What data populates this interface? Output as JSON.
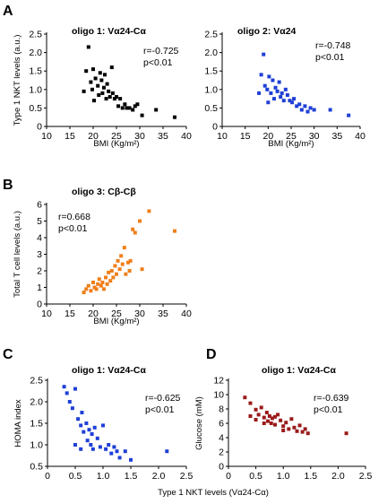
{
  "panels": {
    "A": {
      "letter": "A"
    },
    "B": {
      "letter": "B"
    },
    "C": {
      "letter": "C"
    },
    "D": {
      "letter": "D"
    }
  },
  "chart_data": [
    {
      "id": "A1",
      "type": "scatter",
      "color": "#000000",
      "title": "oligo 1: Vα24-Cα",
      "xlabel": "BMI (Kg/m²)",
      "ylabel": "Type 1 NKT levels (a.u.)",
      "stats": [
        "r=-0.725",
        "p<0.01"
      ],
      "xlim": [
        10,
        40
      ],
      "ylim": [
        0,
        2.5
      ],
      "xticks": [
        "10",
        "15",
        "20",
        "25",
        "30",
        "35",
        "40"
      ],
      "yticks": [
        "0",
        "0.5",
        "1.0",
        "1.5",
        "2.0",
        "2.5"
      ],
      "points": [
        [
          19,
          2.15
        ],
        [
          18.5,
          1.5
        ],
        [
          19.5,
          1.2
        ],
        [
          19.8,
          1.0
        ],
        [
          20,
          1.55
        ],
        [
          20.5,
          1.3
        ],
        [
          21,
          1.1
        ],
        [
          21.2,
          0.85
        ],
        [
          21.5,
          1.45
        ],
        [
          21.8,
          1.25
        ],
        [
          22,
          0.9
        ],
        [
          22.3,
          1.05
        ],
        [
          22.5,
          1.4
        ],
        [
          22.8,
          0.75
        ],
        [
          23,
          1.15
        ],
        [
          23.3,
          0.95
        ],
        [
          23.6,
          0.8
        ],
        [
          24,
          1.6
        ],
        [
          24.2,
          0.9
        ],
        [
          24.6,
          0.75
        ],
        [
          25,
          0.8
        ],
        [
          25.4,
          0.55
        ],
        [
          25.8,
          0.75
        ],
        [
          26.3,
          0.5
        ],
        [
          26.8,
          0.6
        ],
        [
          27.2,
          0.5
        ],
        [
          27.8,
          0.5
        ],
        [
          28.5,
          0.45
        ],
        [
          29,
          0.55
        ],
        [
          29.5,
          0.6
        ],
        [
          30.5,
          0.3
        ],
        [
          33.5,
          0.45
        ],
        [
          37.5,
          0.25
        ],
        [
          18,
          0.95
        ],
        [
          20.2,
          0.7
        ]
      ]
    },
    {
      "id": "A2",
      "type": "scatter",
      "color": "#1f3fd6",
      "title": "oligo 2: Vα24",
      "xlabel": "BMI (Kg/m²)",
      "ylabel": "",
      "stats": [
        "r=-0.748",
        "p<0.01"
      ],
      "xlim": [
        10,
        40
      ],
      "ylim": [
        0,
        2.5
      ],
      "xticks": [
        "10",
        "15",
        "20",
        "25",
        "30",
        "35",
        "40"
      ],
      "yticks": [
        "0",
        "0.5",
        "1.0",
        "1.5",
        "2.0",
        "2.5"
      ],
      "points": [
        [
          19,
          1.95
        ],
        [
          18.5,
          1.4
        ],
        [
          19.3,
          1.1
        ],
        [
          19.8,
          1.0
        ],
        [
          20.2,
          1.35
        ],
        [
          20.6,
          0.9
        ],
        [
          21,
          1.25
        ],
        [
          21.3,
          0.75
        ],
        [
          21.6,
          1.05
        ],
        [
          22,
          0.95
        ],
        [
          22.4,
          1.2
        ],
        [
          22.7,
          0.8
        ],
        [
          23,
          0.9
        ],
        [
          23.4,
          0.7
        ],
        [
          23.8,
          1.0
        ],
        [
          24.2,
          0.85
        ],
        [
          24.7,
          0.7
        ],
        [
          25.2,
          0.65
        ],
        [
          25.6,
          0.75
        ],
        [
          26.2,
          0.55
        ],
        [
          26.8,
          0.6
        ],
        [
          27.3,
          0.45
        ],
        [
          28,
          0.55
        ],
        [
          28.6,
          0.4
        ],
        [
          29.2,
          0.5
        ],
        [
          30,
          0.45
        ],
        [
          33.5,
          0.45
        ],
        [
          37.5,
          0.3
        ],
        [
          18,
          0.9
        ],
        [
          20,
          0.65
        ]
      ]
    },
    {
      "id": "B",
      "type": "scatter",
      "color": "#f07f1a",
      "title": "oligo 3: Cβ-Cβ",
      "xlabel": "BMI (Kg/m²)",
      "ylabel": "Total T cell levels (a.u.)",
      "stats": [
        "r=0.668",
        "p<0.01"
      ],
      "xlim": [
        10,
        40
      ],
      "ylim": [
        0,
        6
      ],
      "xticks": [
        "10",
        "15",
        "20",
        "25",
        "30",
        "35",
        "40"
      ],
      "yticks": [
        "0",
        "1",
        "2",
        "3",
        "4",
        "5",
        "6"
      ],
      "points": [
        [
          18,
          0.7
        ],
        [
          18.5,
          0.9
        ],
        [
          19,
          1.1
        ],
        [
          19.5,
          0.8
        ],
        [
          20,
          1.3
        ],
        [
          20.3,
          1.0
        ],
        [
          20.7,
          0.9
        ],
        [
          21,
          1.2
        ],
        [
          21.3,
          1.5
        ],
        [
          21.7,
          1.1
        ],
        [
          22,
          1.3
        ],
        [
          22.3,
          0.9
        ],
        [
          22.7,
          1.6
        ],
        [
          23,
          1.2
        ],
        [
          23.3,
          1.9
        ],
        [
          23.7,
          1.4
        ],
        [
          24,
          2.0
        ],
        [
          24.3,
          1.6
        ],
        [
          24.7,
          2.3
        ],
        [
          25,
          1.8
        ],
        [
          25.3,
          2.6
        ],
        [
          25.7,
          2.1
        ],
        [
          26,
          2.9
        ],
        [
          26.3,
          2.4
        ],
        [
          26.7,
          3.4
        ],
        [
          27,
          1.8
        ],
        [
          27.5,
          2.5
        ],
        [
          28,
          2.6
        ],
        [
          28.5,
          4.5
        ],
        [
          29,
          4.3
        ],
        [
          30,
          5.0
        ],
        [
          30.5,
          2.1
        ],
        [
          32,
          5.6
        ],
        [
          37.5,
          4.4
        ],
        [
          27.8,
          2.0
        ]
      ]
    },
    {
      "id": "C",
      "type": "scatter",
      "color": "#1f3fd6",
      "title": "oligo 1: Vα24-Cα",
      "xlabel": "",
      "ylabel": "HOMA index",
      "stats": [
        "r=-0.625",
        "p<0.01"
      ],
      "xlim": [
        0,
        2.5
      ],
      "ylim": [
        0.5,
        2.5
      ],
      "xticks": [
        "0",
        "0.5",
        "1.0",
        "1.5",
        "2.0",
        "2.5"
      ],
      "yticks": [
        "0.5",
        "1.0",
        "1.5",
        "2.0",
        "2.5"
      ],
      "points": [
        [
          0.3,
          2.35
        ],
        [
          0.35,
          2.2
        ],
        [
          0.4,
          2.0
        ],
        [
          0.45,
          1.85
        ],
        [
          0.5,
          2.3
        ],
        [
          0.55,
          1.6
        ],
        [
          0.6,
          1.45
        ],
        [
          0.62,
          1.75
        ],
        [
          0.65,
          1.3
        ],
        [
          0.7,
          1.5
        ],
        [
          0.72,
          1.1
        ],
        [
          0.75,
          1.35
        ],
        [
          0.78,
          1.0
        ],
        [
          0.8,
          1.25
        ],
        [
          0.82,
          0.9
        ],
        [
          0.85,
          1.4
        ],
        [
          0.9,
          1.15
        ],
        [
          0.95,
          0.95
        ],
        [
          1.0,
          1.45
        ],
        [
          1.05,
          0.9
        ],
        [
          1.1,
          1.0
        ],
        [
          1.15,
          0.8
        ],
        [
          1.2,
          0.95
        ],
        [
          1.25,
          0.85
        ],
        [
          1.3,
          0.7
        ],
        [
          1.4,
          0.85
        ],
        [
          1.5,
          0.65
        ],
        [
          2.15,
          0.85
        ],
        [
          0.5,
          1.0
        ],
        [
          0.6,
          0.9
        ]
      ]
    },
    {
      "id": "D",
      "type": "scatter",
      "color": "#9b1b1b",
      "title": "oligo 1: Vα24-Cα",
      "xlabel": "",
      "ylabel": "Glucose (mM)",
      "stats": [
        "r=-0.639",
        "p<0.01"
      ],
      "xlim": [
        0,
        2.5
      ],
      "ylim": [
        0,
        12
      ],
      "xticks": [
        "0",
        "0.5",
        "1.0",
        "1.5",
        "2.0",
        "2.5"
      ],
      "yticks": [
        "0",
        "2",
        "4",
        "6",
        "8",
        "10",
        "12"
      ],
      "points": [
        [
          0.3,
          9.6
        ],
        [
          0.4,
          8.8
        ],
        [
          0.5,
          7.9
        ],
        [
          0.55,
          7.2
        ],
        [
          0.6,
          8.2
        ],
        [
          0.65,
          6.8
        ],
        [
          0.7,
          7.5
        ],
        [
          0.72,
          6.3
        ],
        [
          0.75,
          7.0
        ],
        [
          0.78,
          6.0
        ],
        [
          0.8,
          6.7
        ],
        [
          0.85,
          5.8
        ],
        [
          0.9,
          7.2
        ],
        [
          0.95,
          6.4
        ],
        [
          1.0,
          5.6
        ],
        [
          1.05,
          6.1
        ],
        [
          1.1,
          5.2
        ],
        [
          1.15,
          6.6
        ],
        [
          1.2,
          5.4
        ],
        [
          1.25,
          4.9
        ],
        [
          1.3,
          5.7
        ],
        [
          1.35,
          4.8
        ],
        [
          1.4,
          5.2
        ],
        [
          1.45,
          4.6
        ],
        [
          0.5,
          6.5
        ],
        [
          0.65,
          6.0
        ],
        [
          0.85,
          6.9
        ],
        [
          2.15,
          4.6
        ],
        [
          1.0,
          5.0
        ],
        [
          0.4,
          7.0
        ]
      ]
    }
  ],
  "shared": {
    "cd_xlabel": "Type 1 NKT levels (Vα24-Cα)"
  }
}
